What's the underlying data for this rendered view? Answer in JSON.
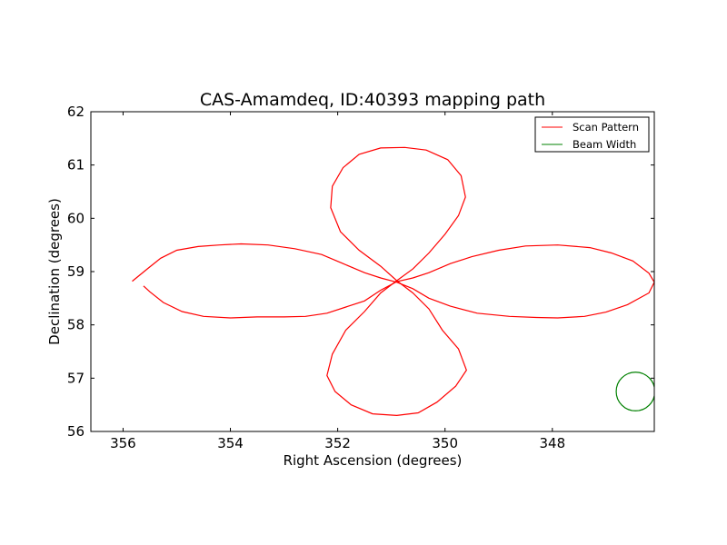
{
  "chart_data": {
    "type": "line",
    "title": "CAS-Amamdeq, ID:40393 mapping path",
    "xlabel": "Right Ascension (degrees)",
    "ylabel": "Declination (degrees)",
    "xlim": [
      356.6,
      346.1
    ],
    "ylim": [
      56,
      62
    ],
    "x_ticks": [
      356,
      354,
      352,
      350,
      348
    ],
    "y_ticks": [
      56,
      57,
      58,
      59,
      60,
      61,
      62
    ],
    "x_tick_labels": [
      "356",
      "354",
      "352",
      "350",
      "348"
    ],
    "y_tick_labels": [
      "56",
      "57",
      "58",
      "59",
      "60",
      "61",
      "62"
    ],
    "legend_position": "top-right",
    "grid": false,
    "series": [
      {
        "name": "Scan Pattern",
        "color": "#ff0000",
        "points": [
          [
            355.83,
            58.82
          ],
          [
            355.55,
            59.05
          ],
          [
            355.3,
            59.25
          ],
          [
            355.0,
            59.4
          ],
          [
            354.6,
            59.47
          ],
          [
            354.2,
            59.5
          ],
          [
            353.8,
            59.52
          ],
          [
            353.3,
            59.5
          ],
          [
            352.8,
            59.43
          ],
          [
            352.3,
            59.32
          ],
          [
            351.9,
            59.15
          ],
          [
            351.5,
            58.98
          ],
          [
            351.2,
            58.88
          ],
          [
            350.9,
            58.8
          ],
          [
            350.6,
            58.68
          ],
          [
            350.3,
            58.5
          ],
          [
            349.9,
            58.35
          ],
          [
            349.4,
            58.22
          ],
          [
            348.8,
            58.16
          ],
          [
            348.3,
            58.14
          ],
          [
            347.9,
            58.13
          ],
          [
            347.4,
            58.16
          ],
          [
            347.0,
            58.24
          ],
          [
            346.6,
            58.38
          ],
          [
            346.2,
            58.6
          ],
          [
            346.1,
            58.8
          ],
          [
            346.2,
            58.97
          ],
          [
            346.5,
            59.2
          ],
          [
            346.9,
            59.35
          ],
          [
            347.3,
            59.45
          ],
          [
            347.9,
            59.5
          ],
          [
            348.5,
            59.48
          ],
          [
            349.0,
            59.4
          ],
          [
            349.5,
            59.28
          ],
          [
            349.9,
            59.15
          ],
          [
            350.3,
            58.98
          ],
          [
            350.6,
            58.88
          ],
          [
            350.9,
            58.81
          ],
          [
            351.2,
            58.65
          ],
          [
            351.5,
            58.45
          ],
          [
            351.8,
            58.35
          ],
          [
            352.2,
            58.22
          ],
          [
            352.6,
            58.16
          ],
          [
            353.0,
            58.15
          ],
          [
            353.5,
            58.15
          ],
          [
            354.0,
            58.13
          ],
          [
            354.5,
            58.16
          ],
          [
            354.9,
            58.25
          ],
          [
            355.25,
            58.42
          ],
          [
            355.5,
            58.62
          ],
          [
            355.62,
            58.73
          ]
        ]
      },
      {
        "name": "",
        "color": "#ff0000",
        "points": [
          [
            350.9,
            58.83
          ],
          [
            350.6,
            59.05
          ],
          [
            350.3,
            59.35
          ],
          [
            350.0,
            59.7
          ],
          [
            349.75,
            60.05
          ],
          [
            349.62,
            60.4
          ],
          [
            349.7,
            60.8
          ],
          [
            349.95,
            61.1
          ],
          [
            350.35,
            61.28
          ],
          [
            350.75,
            61.33
          ],
          [
            351.2,
            61.32
          ],
          [
            351.6,
            61.2
          ],
          [
            351.9,
            60.95
          ],
          [
            352.1,
            60.6
          ],
          [
            352.13,
            60.2
          ],
          [
            351.95,
            59.75
          ],
          [
            351.6,
            59.4
          ],
          [
            351.2,
            59.1
          ],
          [
            350.9,
            58.83
          ],
          [
            350.6,
            58.6
          ],
          [
            350.3,
            58.3
          ],
          [
            350.05,
            57.9
          ],
          [
            349.75,
            57.55
          ],
          [
            349.6,
            57.15
          ],
          [
            349.8,
            56.85
          ],
          [
            350.15,
            56.55
          ],
          [
            350.5,
            56.35
          ],
          [
            350.9,
            56.3
          ],
          [
            351.35,
            56.33
          ],
          [
            351.75,
            56.5
          ],
          [
            352.05,
            56.75
          ],
          [
            352.2,
            57.05
          ],
          [
            352.1,
            57.45
          ],
          [
            351.85,
            57.9
          ],
          [
            351.5,
            58.25
          ],
          [
            351.2,
            58.6
          ],
          [
            350.9,
            58.83
          ]
        ]
      },
      {
        "name": "Beam Width",
        "color": "#008000",
        "circle": {
          "center_ra": 346.45,
          "center_dec": 56.75,
          "radius_deg": 0.36
        }
      }
    ]
  }
}
